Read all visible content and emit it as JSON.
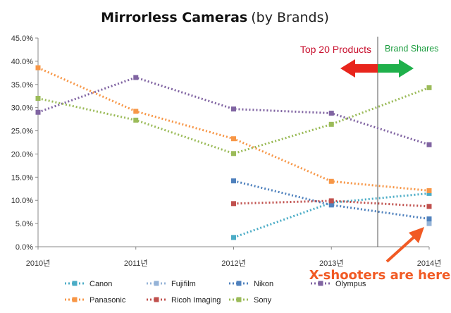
{
  "chart_data": {
    "type": "line",
    "title": "Mirrorless Cameras",
    "subtitle": "(by Brands)",
    "categories": [
      "2010년",
      "2011년",
      "2012년",
      "2013년",
      "2014년"
    ],
    "ylim": [
      0,
      45
    ],
    "yticks": [
      0,
      5,
      10,
      15,
      20,
      25,
      30,
      35,
      40,
      45
    ],
    "ytick_labels": [
      "0.0%",
      "5.0%",
      "10.0%",
      "15.0%",
      "20.0%",
      "25.0%",
      "30.0%",
      "35.0%",
      "40.0%",
      "45.0%"
    ],
    "grid": false,
    "line_style": "dotted with square markers",
    "legend_position": "bottom",
    "series": [
      {
        "name": "Canon",
        "color": "#4bacc6",
        "values": [
          null,
          null,
          2.0,
          9.5,
          11.5
        ]
      },
      {
        "name": "Fujifilm",
        "color": "#95b3d7",
        "values": [
          null,
          null,
          null,
          null,
          5.0
        ]
      },
      {
        "name": "Nikon",
        "color": "#4f81bd",
        "values": [
          null,
          null,
          14.2,
          9.0,
          6.0
        ]
      },
      {
        "name": "Olympus",
        "color": "#8064a2",
        "values": [
          29.0,
          36.5,
          29.7,
          28.8,
          22.0
        ]
      },
      {
        "name": "Panasonic",
        "color": "#f79646",
        "values": [
          38.6,
          29.2,
          23.3,
          14.1,
          12.1
        ]
      },
      {
        "name": "Ricoh Imaging",
        "color": "#c0504d",
        "values": [
          null,
          null,
          9.3,
          9.9,
          8.7
        ]
      },
      {
        "name": "Sony",
        "color": "#9bbb59",
        "values": [
          32.0,
          27.3,
          20.1,
          26.4,
          34.3
        ]
      }
    ],
    "annotations": {
      "top20": "Top 20 Products",
      "brand_shares": "Brand Shares",
      "xshooters": "X-shooters are here"
    }
  },
  "colors": {
    "arrow_red": "#e8251c",
    "arrow_green": "#1fb04b",
    "arrow_orange": "#f15a24",
    "axis": "#888888",
    "divider": "#555555"
  }
}
